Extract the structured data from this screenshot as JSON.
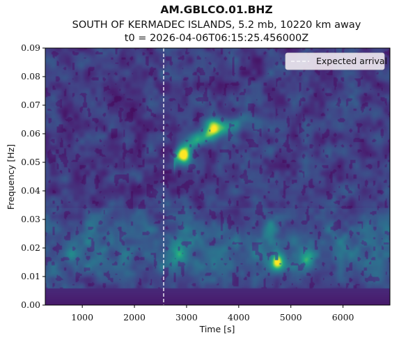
{
  "chart_data": {
    "type": "heatmap",
    "title": "AM.GBLCO.01.BHZ",
    "subtitle": "SOUTH OF KERMADEC ISLANDS, 5.2 mb, 10220 km away",
    "subtitle2": "t0 = 2026-04-06T06:15:25.456000Z",
    "xlabel": "Time [s]",
    "ylabel": "Frequency [Hz]",
    "xlim": [
      290,
      6900
    ],
    "ylim": [
      0.0,
      0.09
    ],
    "xticks": [
      1000,
      2000,
      3000,
      4000,
      5000,
      6000
    ],
    "yticks": [
      0.0,
      0.01,
      0.02,
      0.03,
      0.04,
      0.05,
      0.06,
      0.07,
      0.08,
      0.09
    ],
    "xtick_labels": [
      "1000",
      "2000",
      "3000",
      "4000",
      "5000",
      "6000"
    ],
    "ytick_labels": [
      "0.00",
      "0.01",
      "0.02",
      "0.03",
      "0.04",
      "0.05",
      "0.06",
      "0.07",
      "0.08",
      "0.09"
    ],
    "colormap": "viridis",
    "expected_arrival": 2560,
    "legend": {
      "label": "Expected arrival",
      "position": "upper right"
    },
    "features": [
      {
        "t": 2960,
        "f": 0.052,
        "amp": 1.0
      },
      {
        "t": 3500,
        "f": 0.063,
        "amp": 0.6
      },
      {
        "t": 4750,
        "f": 0.015,
        "amp": 0.95
      },
      {
        "t": 5300,
        "f": 0.017,
        "amp": 0.6
      },
      {
        "t": 2850,
        "f": 0.018,
        "amp": 0.45
      },
      {
        "t": 4600,
        "f": 0.027,
        "amp": 0.4
      },
      {
        "t": 800,
        "f": 0.018,
        "amp": 0.35
      }
    ]
  }
}
